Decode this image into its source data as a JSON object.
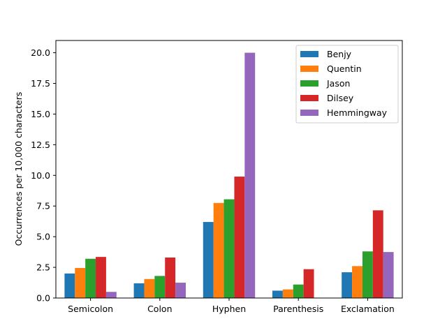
{
  "chart_data": {
    "type": "bar",
    "title": "",
    "xlabel": "",
    "ylabel": "Occurrences per 10,000 characters",
    "categories": [
      "Semicolon",
      "Colon",
      "Hyphen",
      "Parenthesis",
      "Exclamation"
    ],
    "ylim": [
      0,
      21
    ],
    "yticks": [
      "0.0",
      "2.5",
      "5.0",
      "7.5",
      "10.0",
      "12.5",
      "15.0",
      "17.5",
      "20.0"
    ],
    "grid": false,
    "legend_position": "top-right",
    "series": [
      {
        "name": "Benjy",
        "color": "#1f77b4",
        "values": [
          2.0,
          1.2,
          6.2,
          0.6,
          2.1
        ]
      },
      {
        "name": "Quentin",
        "color": "#ff7f0e",
        "values": [
          2.45,
          1.55,
          7.75,
          0.7,
          2.6
        ]
      },
      {
        "name": "Jason",
        "color": "#2ca02c",
        "values": [
          3.2,
          1.8,
          8.05,
          1.1,
          3.8
        ]
      },
      {
        "name": "Dilsey",
        "color": "#d62728",
        "values": [
          3.35,
          3.3,
          9.9,
          2.35,
          7.15
        ]
      },
      {
        "name": "Hemmingway",
        "color": "#9467bd",
        "values": [
          0.5,
          1.25,
          20.0,
          0.0,
          3.75
        ]
      }
    ]
  }
}
